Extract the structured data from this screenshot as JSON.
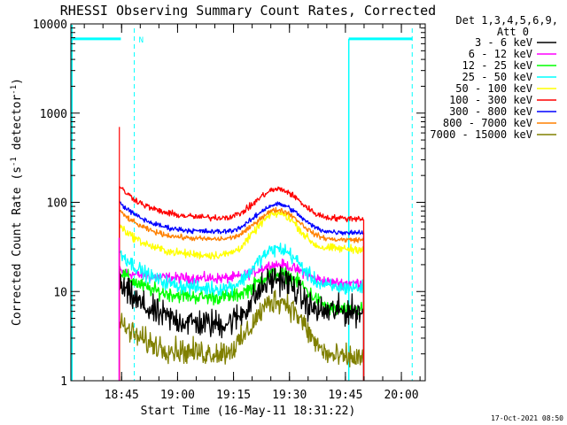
{
  "chart_data": {
    "type": "line",
    "title": "RHESSI Observing Summary Count Rates, Corrected",
    "xlabel": "Start Time (16-May-11 18:31:22)",
    "ylabel": "Corrected Count Rate (s",
    "ylabel_sup1": "-1",
    "ylabel_mid": " detector",
    "ylabel_sup2": "-1",
    "ylabel_end": ")",
    "yscale": "log",
    "ylim": [
      1,
      10000
    ],
    "xlim_minutes": [
      0,
      95
    ],
    "x_ticks": [
      {
        "label": "18:45",
        "minute": 13.6
      },
      {
        "label": "19:00",
        "minute": 28.6
      },
      {
        "label": "19:15",
        "minute": 43.6
      },
      {
        "label": "19:30",
        "minute": 58.6
      },
      {
        "label": "19:45",
        "minute": 73.6
      },
      {
        "label": "20:00",
        "minute": 88.6
      }
    ],
    "y_ticks": [
      {
        "label": "1",
        "value": 1
      },
      {
        "label": "10",
        "value": 10
      },
      {
        "label": "100",
        "value": 100
      },
      {
        "label": "1000",
        "value": 1000
      },
      {
        "label": "10000",
        "value": 10000
      }
    ],
    "legend": {
      "header1": "Det 1,3,4,5,6,9,",
      "header2": "Att 0",
      "placement": "right"
    },
    "data_start_minute": 13.0,
    "data_end_minute": 78.5,
    "flare_peak_minute": 55.5,
    "series": [
      {
        "name": "3 - 6 keV",
        "color": "#000000",
        "base": 4.2,
        "start": 12,
        "peak": 14,
        "end": 6,
        "noise": 0.14
      },
      {
        "name": "6 - 12 keV",
        "color": "#ff00ff",
        "base": 14,
        "start": 17,
        "peak": 20,
        "end": 12.5,
        "noise": 0.05
      },
      {
        "name": "12 - 25 keV",
        "color": "#00ff00",
        "base": 8.5,
        "start": 17,
        "peak": 16,
        "end": 6.2,
        "noise": 0.07
      },
      {
        "name": "25 - 50 keV",
        "color": "#00ffff",
        "base": 10.5,
        "start": 28,
        "peak": 30,
        "end": 11,
        "noise": 0.07
      },
      {
        "name": "50 - 100 keV",
        "color": "#ffff00",
        "base": 25,
        "start": 55,
        "peak": 75,
        "end": 30,
        "noise": 0.04
      },
      {
        "name": "100 - 300 keV",
        "color": "#ff0000",
        "base": 66,
        "start": 150,
        "peak": 140,
        "end": 66,
        "noise": 0.03
      },
      {
        "name": "300 - 800 keV",
        "color": "#0000ff",
        "base": 46,
        "start": 100,
        "peak": 95,
        "end": 46,
        "noise": 0.025
      },
      {
        "name": "800 - 7000 keV",
        "color": "#ff8000",
        "base": 38,
        "start": 80,
        "peak": 82,
        "end": 38,
        "noise": 0.025
      },
      {
        "name": "7000 - 15000 keV",
        "color": "#808000",
        "base": 2.0,
        "start": 4.5,
        "peak": 8,
        "end": 1.8,
        "noise": 0.12
      }
    ],
    "attenuator_markers": [
      {
        "label": "N",
        "minute": 13.6
      }
    ],
    "timestamp": "17-Oct-2021 08:50"
  }
}
